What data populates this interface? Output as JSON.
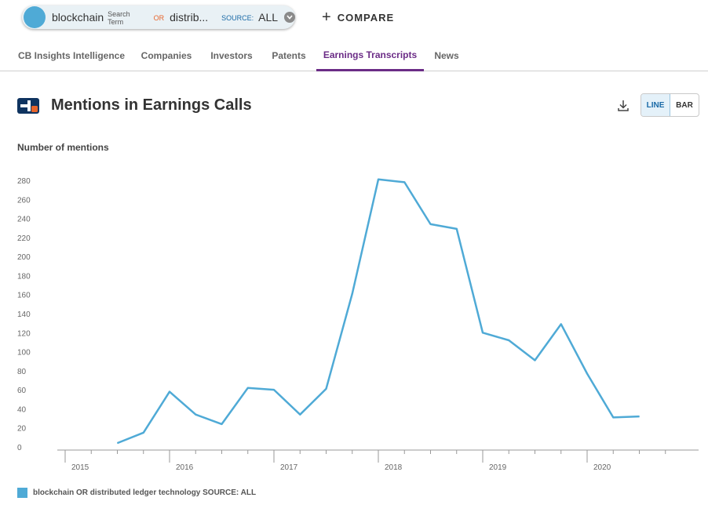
{
  "search": {
    "term": "blockchain",
    "term_type": "Search Term",
    "operator": "OR",
    "term2": "distrib...",
    "source_label": "SOURCE:",
    "source_value": "ALL"
  },
  "compare": {
    "label": "COMPARE",
    "icon": "plus-icon"
  },
  "tabs": [
    {
      "label": "CB Insights Intelligence",
      "active": false
    },
    {
      "label": "Companies",
      "active": false
    },
    {
      "label": "Investors",
      "active": false
    },
    {
      "label": "Patents",
      "active": false
    },
    {
      "label": "Earnings Transcripts",
      "active": true
    },
    {
      "label": "News",
      "active": false
    }
  ],
  "header": {
    "title": "Mentions in Earnings Calls",
    "download_icon": "download-icon",
    "toggle": {
      "line": "LINE",
      "bar": "BAR",
      "selected": "LINE"
    }
  },
  "colors": {
    "accent": "#6b2c86",
    "series": "#4faad6",
    "link": "#1a6aa7",
    "or": "#e8652b"
  },
  "chart_data": {
    "type": "line",
    "ylabel": "Number of mentions",
    "ylim": [
      0,
      280
    ],
    "yticks": [
      0,
      20,
      40,
      60,
      80,
      100,
      120,
      140,
      160,
      180,
      200,
      220,
      240,
      260,
      280
    ],
    "xticks": [
      "2015",
      "2016",
      "2017",
      "2018",
      "2019",
      "2020"
    ],
    "grid": false,
    "legend_position": "bottom-left",
    "series": [
      {
        "name": "blockchain OR distributed ledger technology SOURCE: ALL",
        "x": [
          "2015-Q3",
          "2015-Q4",
          "2016-Q1",
          "2016-Q2",
          "2016-Q3",
          "2016-Q4",
          "2017-Q1",
          "2017-Q2",
          "2017-Q3",
          "2017-Q4",
          "2018-Q1",
          "2018-Q2",
          "2018-Q3",
          "2018-Q4",
          "2019-Q1",
          "2019-Q2",
          "2019-Q3",
          "2019-Q4",
          "2020-Q1",
          "2020-Q2",
          "2020-Q3"
        ],
        "values": [
          4,
          15,
          58,
          34,
          24,
          62,
          60,
          34,
          61,
          161,
          281,
          278,
          234,
          229,
          120,
          112,
          91,
          129,
          77,
          31,
          32
        ]
      }
    ]
  }
}
